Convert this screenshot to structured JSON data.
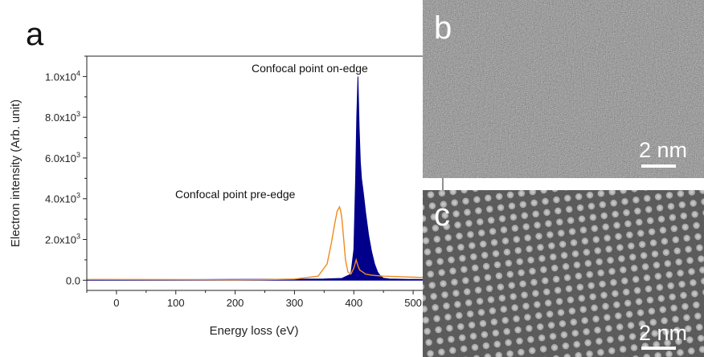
{
  "panels": {
    "a": {
      "letter": "a"
    },
    "b": {
      "letter": "b",
      "scale_bar": "2 nm"
    },
    "c": {
      "letter": "c",
      "scale_bar": "2 nm"
    }
  },
  "chart_data": {
    "type": "line",
    "xlabel": "Energy loss (eV)",
    "ylabel": "Electron intensity (Arb. unit)",
    "xlim": [
      -50,
      550
    ],
    "ylim": [
      -500,
      11000
    ],
    "x_ticks": [
      0,
      100,
      200,
      300,
      400,
      500
    ],
    "x_tick_labels": [
      "0",
      "100",
      "200",
      "300",
      "400",
      "500"
    ],
    "y_ticks": [
      0,
      2000,
      4000,
      6000,
      8000,
      10000
    ],
    "y_tick_labels": [
      {
        "mantissa": "0.0",
        "exp": ""
      },
      {
        "mantissa": "2.0x10",
        "exp": "3"
      },
      {
        "mantissa": "4.0x10",
        "exp": "3"
      },
      {
        "mantissa": "6.0x10",
        "exp": "3"
      },
      {
        "mantissa": "8.0x10",
        "exp": "3"
      },
      {
        "mantissa": "1.0x10",
        "exp": "4"
      }
    ],
    "series": [
      {
        "name": "Confocal point on-edge",
        "color": "#00008b",
        "fill": true,
        "x": [
          -50,
          100,
          200,
          300,
          350,
          380,
          395,
          400,
          403,
          405,
          407,
          409,
          411,
          413,
          416,
          420,
          425,
          430,
          435,
          440,
          445,
          450,
          460,
          500,
          550
        ],
        "y": [
          30,
          30,
          40,
          50,
          60,
          90,
          300,
          1500,
          5000,
          8000,
          10000,
          7500,
          5800,
          5000,
          4300,
          3300,
          2200,
          1400,
          800,
          400,
          200,
          100,
          60,
          40,
          30
        ]
      },
      {
        "name": "Confocal point pre-edge",
        "color": "#f08a1c",
        "fill": false,
        "x": [
          -50,
          100,
          200,
          250,
          300,
          340,
          355,
          362,
          368,
          372,
          376,
          378,
          380,
          383,
          386,
          390,
          395,
          400,
          404,
          407,
          410,
          415,
          420,
          430,
          450,
          500,
          550
        ],
        "y": [
          40,
          30,
          20,
          30,
          60,
          200,
          800,
          1800,
          2800,
          3400,
          3600,
          3400,
          3000,
          2000,
          1000,
          400,
          300,
          600,
          1000,
          700,
          500,
          400,
          300,
          250,
          200,
          150,
          100
        ]
      }
    ],
    "annotations": [
      {
        "text": "Confocal point on-edge"
      },
      {
        "text": "Confocal point pre-edge"
      }
    ]
  }
}
